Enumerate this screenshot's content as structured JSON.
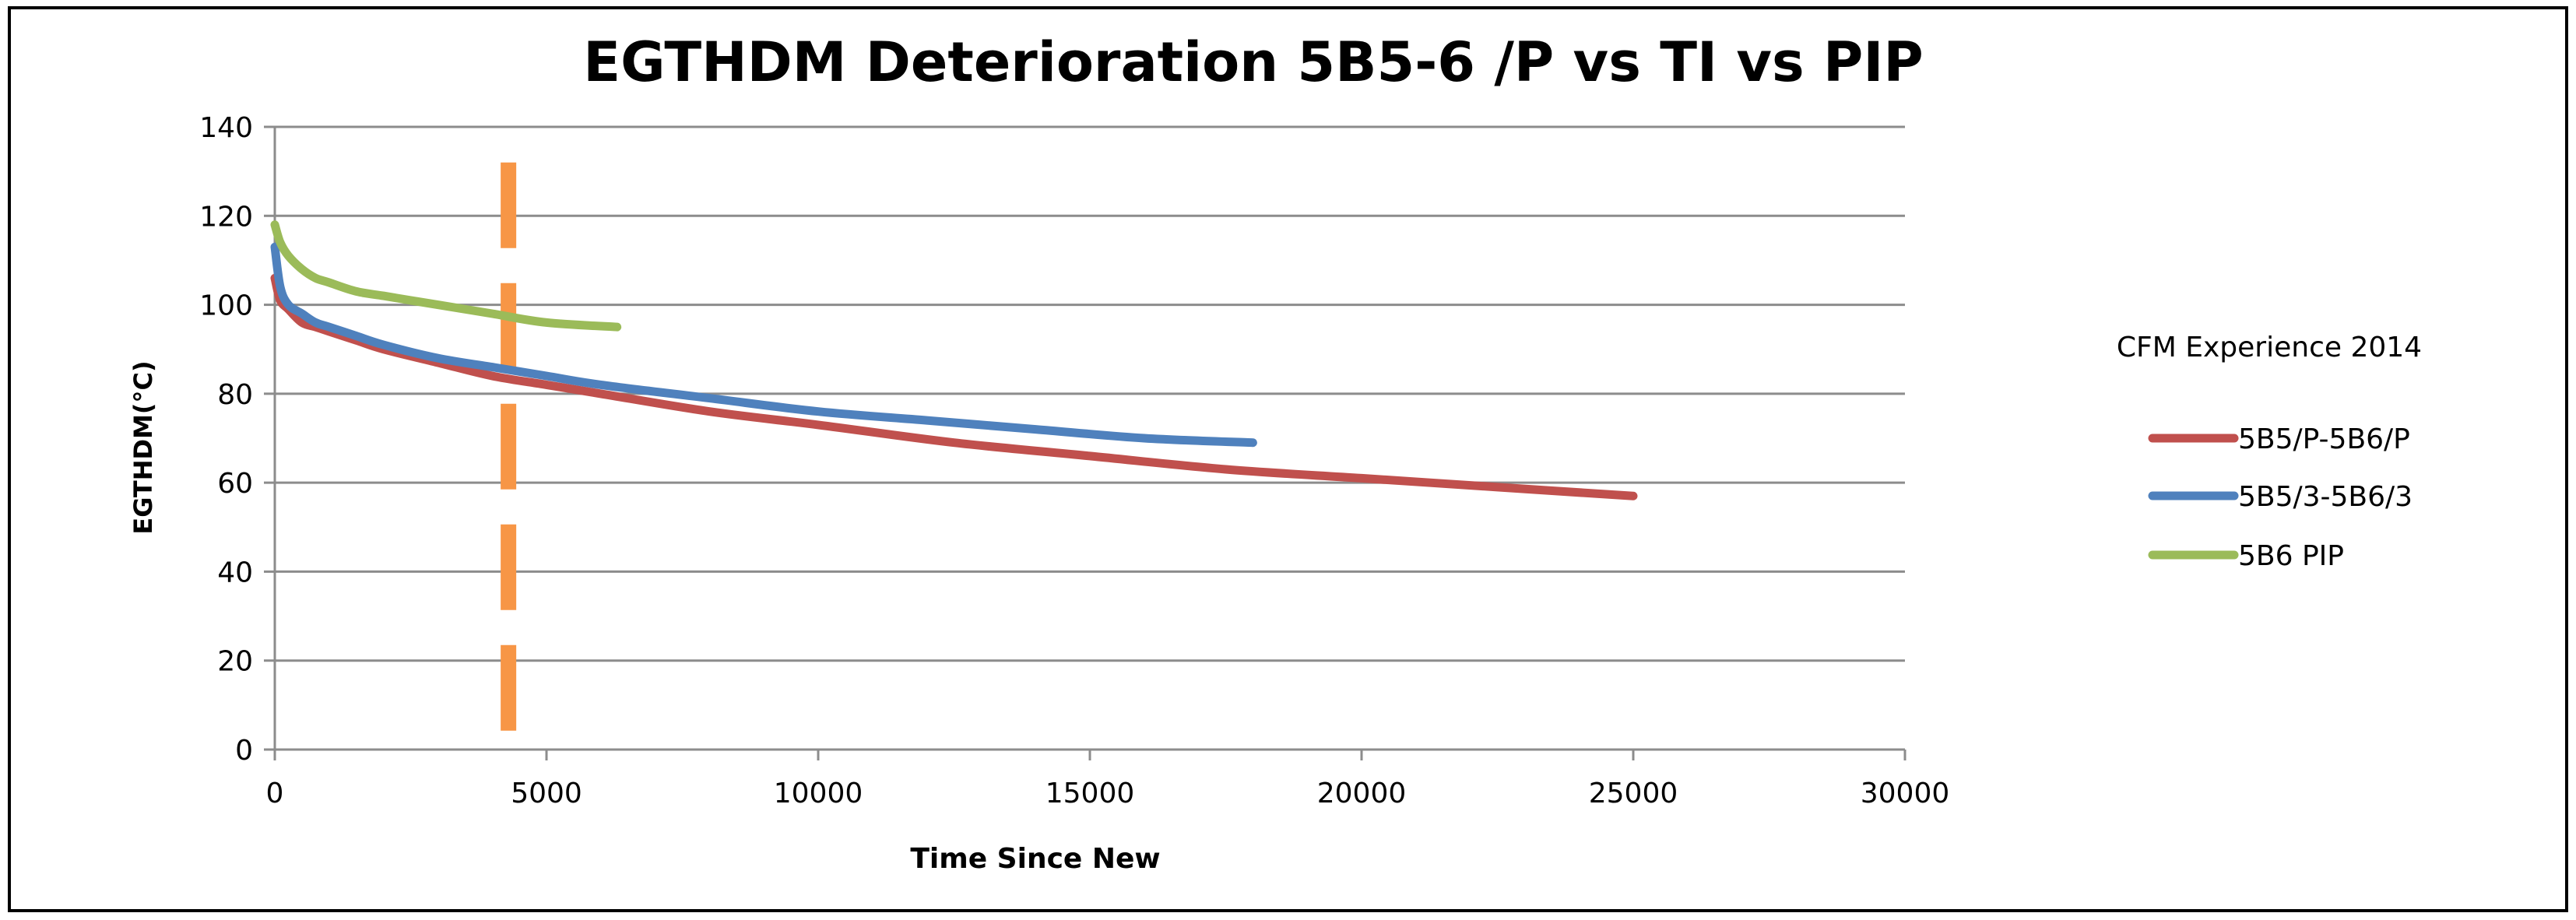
{
  "chart_data": {
    "type": "line",
    "title": "EGTHDM Deterioration 5B5-6 /P vs TI vs PIP",
    "xlabel": "Time Since New",
    "ylabel": "EGTHDM(°C)",
    "xlim": [
      0,
      30000
    ],
    "ylim": [
      0,
      140
    ],
    "x_ticks": [
      0,
      5000,
      10000,
      15000,
      20000,
      25000,
      30000
    ],
    "y_ticks": [
      0,
      20,
      40,
      60,
      80,
      100,
      120,
      140
    ],
    "grid": "horizontal",
    "legend_title": "CFM Experience 2014",
    "legend_position": "right",
    "series": [
      {
        "name": "5B5/P-5B6/P",
        "color": "#c0504d",
        "x": [
          0,
          100,
          250,
          500,
          750,
          1000,
          1500,
          2000,
          3000,
          4000,
          5000,
          6000,
          8000,
          10000,
          12500,
          15000,
          17500,
          20000,
          22500,
          25000
        ],
        "y": [
          106,
          101,
          99,
          96,
          95,
          94,
          92,
          90,
          87,
          84,
          82,
          80,
          76,
          73,
          69,
          66,
          63,
          61,
          59,
          57
        ]
      },
      {
        "name": "5B5/3-5B6/3",
        "color": "#4f81bd",
        "x": [
          0,
          100,
          250,
          500,
          750,
          1000,
          1500,
          2000,
          3000,
          4000,
          5000,
          6000,
          8000,
          10000,
          12000,
          14000,
          16000,
          18000
        ],
        "y": [
          113,
          104,
          100,
          98,
          96,
          95,
          93,
          91,
          88,
          86,
          84,
          82,
          79,
          76,
          74,
          72,
          70,
          69
        ]
      },
      {
        "name": "5B6 PIP",
        "color": "#9bbb59",
        "x": [
          0,
          100,
          250,
          500,
          750,
          1000,
          1500,
          2000,
          2500,
          3000,
          4000,
          5000,
          6300
        ],
        "y": [
          118,
          114,
          111,
          108,
          106,
          105,
          103,
          102,
          101,
          100,
          98,
          96,
          95
        ]
      }
    ],
    "annotations": [
      {
        "type": "vertical-dashed-line",
        "x": 4300,
        "color": "#f79646"
      }
    ]
  }
}
